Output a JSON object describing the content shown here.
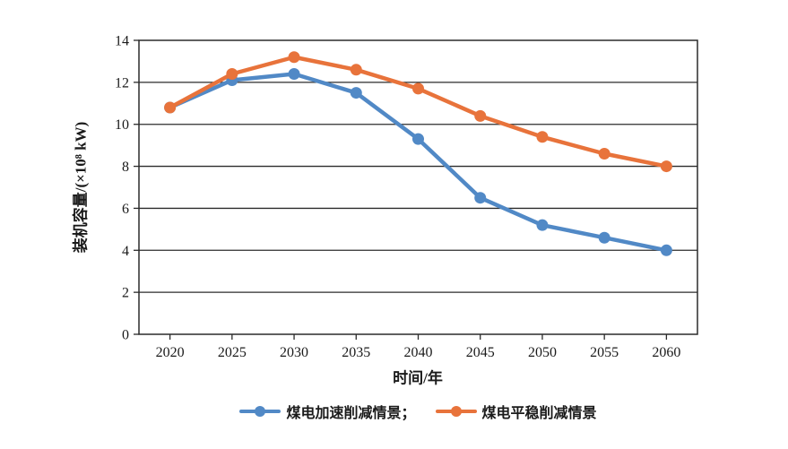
{
  "chart_data": {
    "type": "line",
    "x": [
      "2020",
      "2025",
      "2030",
      "2035",
      "2040",
      "2045",
      "2050",
      "2055",
      "2060"
    ],
    "series": [
      {
        "name": "煤电加速削减情景",
        "color": "#5189C6",
        "values": [
          10.8,
          12.1,
          12.4,
          11.5,
          9.3,
          6.5,
          5.2,
          4.6,
          4.0
        ]
      },
      {
        "name": "煤电平稳削减情景",
        "color": "#E8733B",
        "values": [
          10.8,
          12.4,
          13.2,
          12.6,
          11.7,
          10.4,
          9.4,
          8.6,
          8.0
        ]
      }
    ],
    "title": "",
    "xlabel": "时间/年",
    "ylabel": "装机容量/(×10⁸ kW)",
    "ylim": [
      0,
      14
    ],
    "ytick_step": 2,
    "yticks": [
      0,
      2,
      4,
      6,
      8,
      10,
      12,
      14
    ],
    "grid": "horizontal",
    "plot_border": true,
    "legend_position": "bottom"
  },
  "legend": {
    "items": [
      {
        "label": "煤电加速削减情景；",
        "series": "煤电加速削减情景",
        "color": "#5189C6"
      },
      {
        "label": "煤电平稳削减情景",
        "series": "煤电平稳削减情景",
        "color": "#E8733B"
      }
    ]
  },
  "colors": {
    "axis": "#2B2B2B",
    "text": "#1A1A1A",
    "background": "#FFFFFF"
  }
}
